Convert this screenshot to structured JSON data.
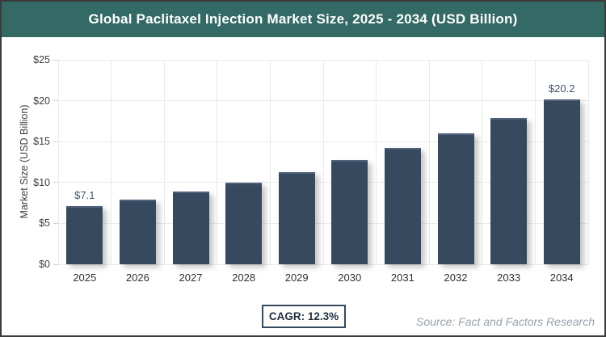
{
  "header": {
    "title": "Global Paclitaxel Injection Market Size, 2025 - 2034 (USD Billion)"
  },
  "chart_data": {
    "type": "bar",
    "title": "Global Paclitaxel Injection Market Size, 2025 - 2034 (USD Billion)",
    "xlabel": "",
    "ylabel": "Market Size (USD Billion)",
    "ylim": [
      0,
      25
    ],
    "ytick_step": 5,
    "ytick_prefix": "$",
    "ytick_labels": [
      "$0",
      "$5",
      "$10",
      "$15",
      "$20",
      "$25"
    ],
    "grid": true,
    "legend": "none",
    "categories": [
      "2025",
      "2026",
      "2027",
      "2028",
      "2029",
      "2030",
      "2031",
      "2032",
      "2033",
      "2034"
    ],
    "values": [
      7.1,
      7.9,
      8.9,
      10.0,
      11.3,
      12.7,
      14.2,
      16.0,
      17.9,
      20.2
    ],
    "point_labels": [
      "$7.1",
      "",
      "",
      "",
      "",
      "",
      "",
      "",
      "",
      "$20.2"
    ]
  },
  "footer": {
    "cagr_label": "CAGR: 12.3%",
    "source": "Source: Fact and Factors Research"
  },
  "colors": {
    "header_bg": "#336A65",
    "bar": "#36495E",
    "bar_top": "#50627B",
    "value_label": "#44546A",
    "axis_text": "#3D3D3D",
    "grid": "#EAEAEA",
    "cagr_border": "#344A5E",
    "cagr_text": "#22303E",
    "source_text": "#96A1AB",
    "outer_border": "#3B3B3B"
  }
}
